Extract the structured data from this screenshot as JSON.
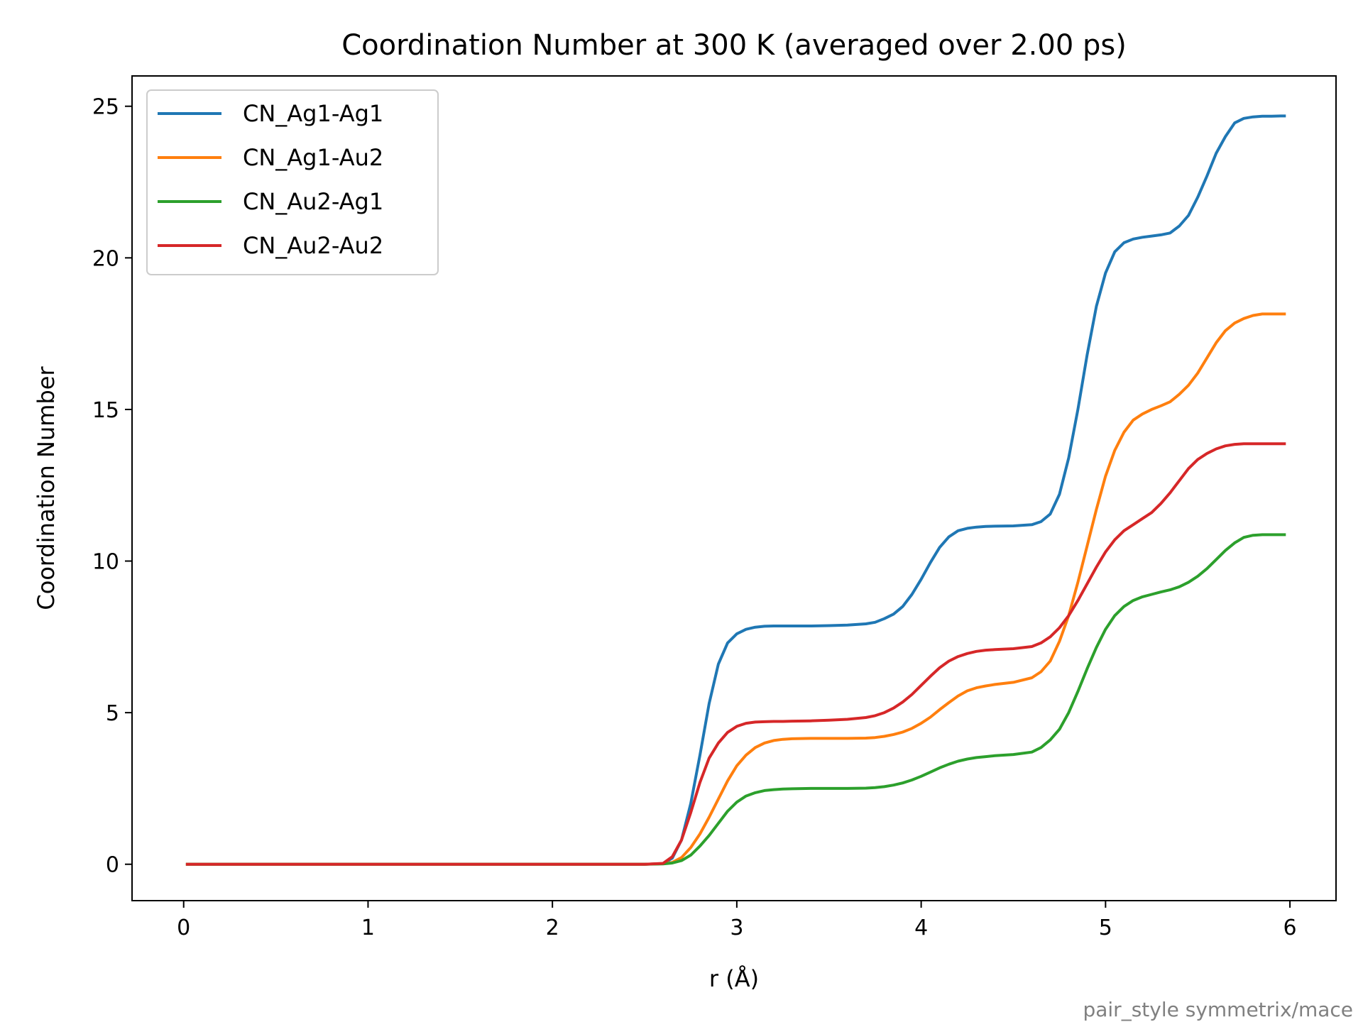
{
  "chart_data": {
    "type": "line",
    "title": "Coordination Number at 300 K (averaged over 2.00 ps)",
    "xlabel": "r (Å)",
    "ylabel": "Coordination Number",
    "xlim": [
      -0.28,
      6.25
    ],
    "ylim": [
      -1.2,
      26.0
    ],
    "xticks": [
      0,
      1,
      2,
      3,
      4,
      5,
      6
    ],
    "xtick_labels": [
      "0",
      "1",
      "2",
      "3",
      "4",
      "5",
      "6"
    ],
    "yticks": [
      0,
      5,
      10,
      15,
      20,
      25
    ],
    "ytick_labels": [
      "0",
      "5",
      "10",
      "15",
      "20",
      "25"
    ],
    "grid": false,
    "legend_position": "upper-left",
    "footnote": "pair_style symmetrix/mace",
    "x": [
      0.02,
      2.5,
      2.6,
      2.65,
      2.7,
      2.75,
      2.8,
      2.85,
      2.9,
      2.95,
      3.0,
      3.05,
      3.1,
      3.15,
      3.2,
      3.25,
      3.3,
      3.4,
      3.5,
      3.6,
      3.7,
      3.75,
      3.8,
      3.85,
      3.9,
      3.95,
      4.0,
      4.05,
      4.1,
      4.15,
      4.2,
      4.25,
      4.3,
      4.35,
      4.4,
      4.5,
      4.6,
      4.65,
      4.7,
      4.75,
      4.8,
      4.85,
      4.9,
      4.95,
      5.0,
      5.05,
      5.1,
      5.15,
      5.2,
      5.25,
      5.3,
      5.35,
      5.4,
      5.45,
      5.5,
      5.55,
      5.6,
      5.65,
      5.7,
      5.75,
      5.8,
      5.85,
      5.9,
      5.95,
      5.97
    ],
    "series": [
      {
        "name": "CN_Ag1-Ag1",
        "color": "#1f77b4",
        "values": [
          0,
          0,
          0.02,
          0.2,
          0.8,
          2.0,
          3.6,
          5.3,
          6.6,
          7.3,
          7.6,
          7.75,
          7.82,
          7.85,
          7.86,
          7.86,
          7.86,
          7.86,
          7.87,
          7.89,
          7.93,
          7.98,
          8.1,
          8.25,
          8.5,
          8.9,
          9.4,
          9.95,
          10.45,
          10.8,
          11.0,
          11.08,
          11.12,
          11.14,
          11.15,
          11.16,
          11.2,
          11.3,
          11.55,
          12.2,
          13.4,
          15.0,
          16.8,
          18.4,
          19.5,
          20.2,
          20.5,
          20.62,
          20.68,
          20.72,
          20.76,
          20.82,
          21.05,
          21.4,
          22.0,
          22.7,
          23.45,
          24.0,
          24.45,
          24.6,
          24.65,
          24.67,
          24.67,
          24.68,
          24.68
        ]
      },
      {
        "name": "CN_Ag1-Au2",
        "color": "#ff7f0e",
        "values": [
          0,
          0,
          0.02,
          0.06,
          0.22,
          0.55,
          1.0,
          1.55,
          2.15,
          2.75,
          3.25,
          3.6,
          3.85,
          4.0,
          4.08,
          4.12,
          4.14,
          4.15,
          4.15,
          4.15,
          4.16,
          4.18,
          4.22,
          4.28,
          4.36,
          4.48,
          4.65,
          4.85,
          5.1,
          5.33,
          5.55,
          5.72,
          5.82,
          5.88,
          5.93,
          6.0,
          6.15,
          6.35,
          6.7,
          7.35,
          8.2,
          9.3,
          10.5,
          11.7,
          12.8,
          13.65,
          14.25,
          14.65,
          14.85,
          15.0,
          15.12,
          15.25,
          15.5,
          15.8,
          16.2,
          16.7,
          17.2,
          17.6,
          17.85,
          18.0,
          18.1,
          18.15,
          18.15,
          18.15,
          18.15
        ]
      },
      {
        "name": "CN_Au2-Ag1",
        "color": "#2ca02c",
        "values": [
          0,
          0,
          0.01,
          0.04,
          0.12,
          0.3,
          0.6,
          0.95,
          1.35,
          1.75,
          2.05,
          2.25,
          2.36,
          2.43,
          2.46,
          2.48,
          2.49,
          2.5,
          2.5,
          2.5,
          2.51,
          2.53,
          2.56,
          2.61,
          2.68,
          2.78,
          2.9,
          3.04,
          3.18,
          3.3,
          3.4,
          3.47,
          3.52,
          3.55,
          3.58,
          3.62,
          3.7,
          3.85,
          4.1,
          4.45,
          5.0,
          5.7,
          6.45,
          7.15,
          7.75,
          8.2,
          8.5,
          8.7,
          8.82,
          8.9,
          8.98,
          9.05,
          9.15,
          9.3,
          9.5,
          9.75,
          10.05,
          10.35,
          10.6,
          10.78,
          10.85,
          10.87,
          10.87,
          10.87,
          10.87
        ]
      },
      {
        "name": "CN_Au2-Au2",
        "color": "#d62728",
        "values": [
          0,
          0,
          0.03,
          0.25,
          0.8,
          1.7,
          2.7,
          3.5,
          4.0,
          4.35,
          4.55,
          4.65,
          4.69,
          4.7,
          4.71,
          4.71,
          4.72,
          4.73,
          4.75,
          4.78,
          4.84,
          4.9,
          5.0,
          5.15,
          5.35,
          5.6,
          5.9,
          6.2,
          6.48,
          6.7,
          6.85,
          6.95,
          7.02,
          7.06,
          7.08,
          7.11,
          7.18,
          7.3,
          7.5,
          7.8,
          8.2,
          8.7,
          9.25,
          9.8,
          10.3,
          10.7,
          11.0,
          11.2,
          11.4,
          11.6,
          11.9,
          12.25,
          12.65,
          13.05,
          13.35,
          13.55,
          13.7,
          13.8,
          13.85,
          13.87,
          13.87,
          13.87,
          13.87,
          13.87,
          13.87
        ]
      }
    ]
  }
}
